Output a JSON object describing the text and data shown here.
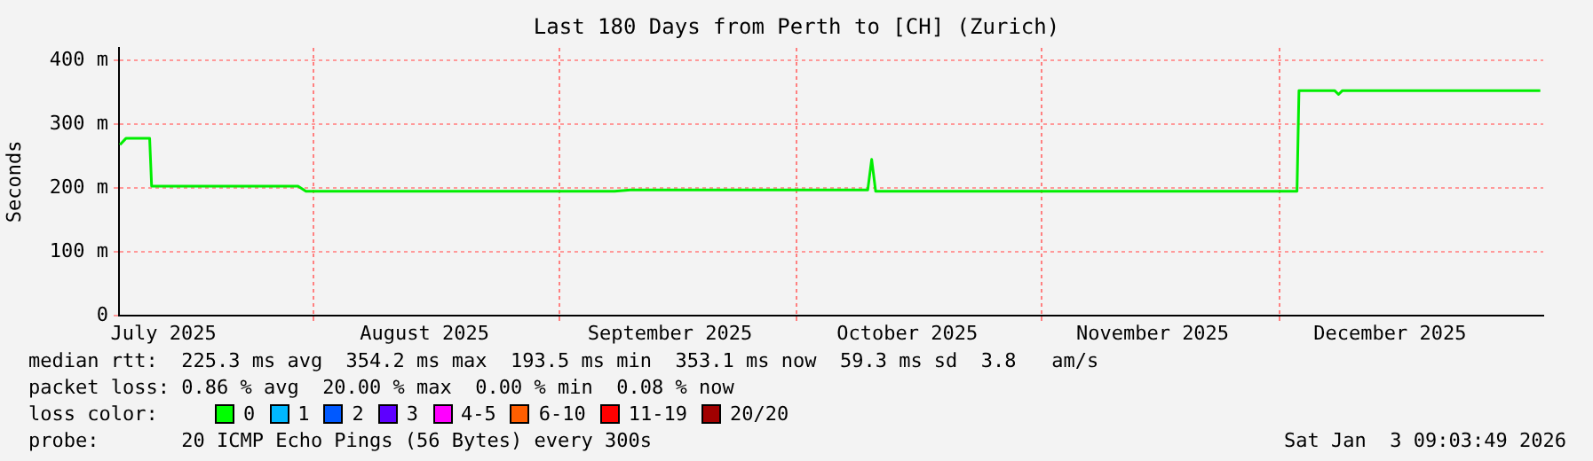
{
  "chart_data": {
    "type": "line",
    "title": "Last 180 Days from Perth to [CH] (Zurich)",
    "ylabel": "Seconds",
    "x": [
      "2025-07-07T12:00",
      "2025-07-08T06:00",
      "2025-07-11T06:00",
      "2025-07-11T12:00",
      "2025-07-22T00:00",
      "2025-07-30T00:00",
      "2025-07-31T00:00",
      "2025-08-15T00:00",
      "2025-09-08T00:00",
      "2025-09-10T00:00",
      "2025-09-25T00:00",
      "2025-10-10T00:00",
      "2025-10-10T12:00",
      "2025-10-11T00:00",
      "2025-10-20T00:00",
      "2025-11-15T00:00",
      "2025-12-03T06:00",
      "2025-12-03T12:00",
      "2025-12-08T00:00",
      "2025-12-08T12:00",
      "2025-12-09T00:00",
      "2026-01-03T00:00"
    ],
    "series": [
      {
        "color": "#00ee00",
        "values": [
          268,
          278,
          278,
          203,
          203,
          203,
          195,
          195,
          195,
          197,
          197,
          197,
          245,
          195,
          195,
          195,
          195,
          353,
          353,
          347,
          353,
          353
        ]
      }
    ],
    "xlim": [
      "2025-07-07T09:00",
      "2026-01-03T09:00"
    ],
    "xticks": [
      {
        "value": "2025-08-01",
        "label": null
      },
      {
        "value": "2025-09-01",
        "label": null
      },
      {
        "value": "2025-10-01",
        "label": null
      },
      {
        "value": "2025-11-01",
        "label": null
      },
      {
        "value": "2025-12-01",
        "label": null
      },
      {
        "value": "2025-07-13",
        "label": "July 2025"
      },
      {
        "value": "2025-08-15",
        "label": "August 2025"
      },
      {
        "value": "2025-09-15",
        "label": "September 2025"
      },
      {
        "value": "2025-10-15",
        "label": "October 2025"
      },
      {
        "value": "2025-11-15",
        "label": "November 2025"
      },
      {
        "value": "2025-12-15",
        "label": "December 2025"
      }
    ],
    "ylim": [
      0,
      420
    ],
    "yticks": [
      0,
      {
        "value": 100,
        "label": "100 m"
      },
      {
        "value": 200,
        "label": "200 m"
      },
      {
        "value": 300,
        "label": "300 m"
      },
      {
        "value": 400,
        "label": "400 m"
      }
    ],
    "grid": true,
    "legend": false,
    "marker": "none",
    "line_style": "solid",
    "annotations": [
      "median rtt:  225.3 ms avg  354.2 ms max  193.5 ms min  353.1 ms now  59.3 ms sd  3.8   am/s",
      "packet loss: 0.86 % avg  20.00 % max  0.00 % min  0.08 % now",
      "loss color:",
      "0",
      "1",
      "2",
      "3",
      "4-5",
      "6-10",
      "11-19",
      "20/20",
      "probe:       20 ICMP Echo Pings (56 Bytes) every 300s",
      "Sat Jan  3 09:03:49 2026"
    ]
  }
}
